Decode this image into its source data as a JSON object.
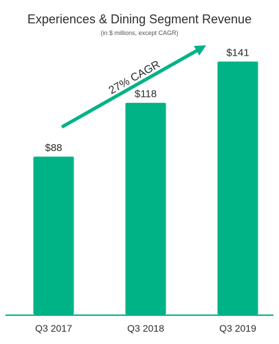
{
  "chart_data": {
    "type": "bar",
    "title": "Experiences & Dining Segment Revenue",
    "subtitle": "(in $ millions, except CAGR)",
    "categories": [
      "Q3 2017",
      "Q3 2018",
      "Q3 2019"
    ],
    "values": [
      88,
      118,
      141
    ],
    "value_labels": [
      "$88",
      "$118",
      "$141"
    ],
    "annotation": "27% CAGR",
    "xlabel": "",
    "ylabel": "",
    "ylim": [
      0,
      160
    ],
    "grid": false,
    "legend": "none",
    "colors": {
      "bar": "#00B386",
      "arrow": "#00B386",
      "axis": "#00B386",
      "text": "#2b2b2b"
    }
  }
}
